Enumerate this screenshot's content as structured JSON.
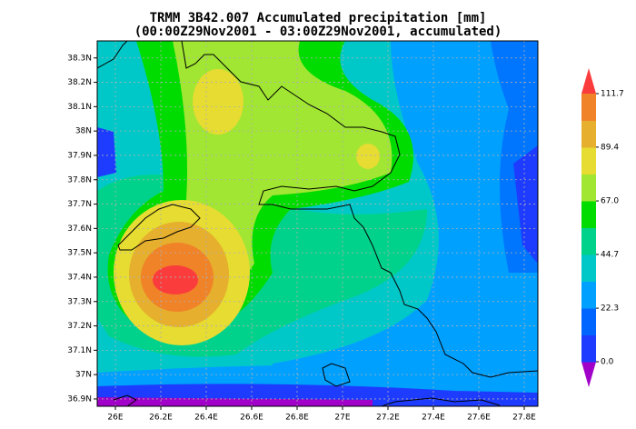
{
  "chart_data": {
    "type": "contour-map",
    "title": "TRMM 3B42.007 Accumulated precipitation [mm]",
    "subtitle": "(00:00Z29Nov2001 - 03:00Z29Nov2001, accumulated)",
    "xlim": [
      25.92,
      27.86
    ],
    "ylim": [
      36.87,
      38.37
    ],
    "xticks": [
      {
        "value": 26,
        "label": "26E"
      },
      {
        "value": 26.2,
        "label": "26.2E"
      },
      {
        "value": 26.4,
        "label": "26.4E"
      },
      {
        "value": 26.6,
        "label": "26.6E"
      },
      {
        "value": 26.8,
        "label": "26.8E"
      },
      {
        "value": 27,
        "label": "27E"
      },
      {
        "value": 27.2,
        "label": "27.2E"
      },
      {
        "value": 27.4,
        "label": "27.4E"
      },
      {
        "value": 27.6,
        "label": "27.6E"
      },
      {
        "value": 27.8,
        "label": "27.8E"
      }
    ],
    "yticks": [
      {
        "value": 36.9,
        "label": "36.9N"
      },
      {
        "value": 37,
        "label": "37N"
      },
      {
        "value": 37.1,
        "label": "37.1N"
      },
      {
        "value": 37.2,
        "label": "37.2N"
      },
      {
        "value": 37.3,
        "label": "37.3N"
      },
      {
        "value": 37.4,
        "label": "37.4N"
      },
      {
        "value": 37.5,
        "label": "37.5N"
      },
      {
        "value": 37.6,
        "label": "37.6N"
      },
      {
        "value": 37.7,
        "label": "37.7N"
      },
      {
        "value": 37.8,
        "label": "37.8N"
      },
      {
        "value": 37.9,
        "label": "37.9N"
      },
      {
        "value": 38,
        "label": "38N"
      },
      {
        "value": 38.1,
        "label": "38.1N"
      },
      {
        "value": 38.2,
        "label": "38.2N"
      },
      {
        "value": 38.3,
        "label": "38.3N"
      }
    ],
    "grid": true,
    "colorbar": {
      "levels": [
        {
          "value": 0,
          "label": "0.0"
        },
        22.3,
        44.7,
        {
          "value": 67,
          "label": "67.0"
        },
        89.4,
        111.7
      ],
      "colors": [
        "#a000c8",
        "#1e3cff",
        "#0064ff",
        "#00a0ff",
        "#00c8c8",
        "#00d28c",
        "#00dc00",
        "#a0e632",
        "#e6dc32",
        "#e6af2d",
        "#f08228",
        "#fa3c3c"
      ]
    }
  }
}
